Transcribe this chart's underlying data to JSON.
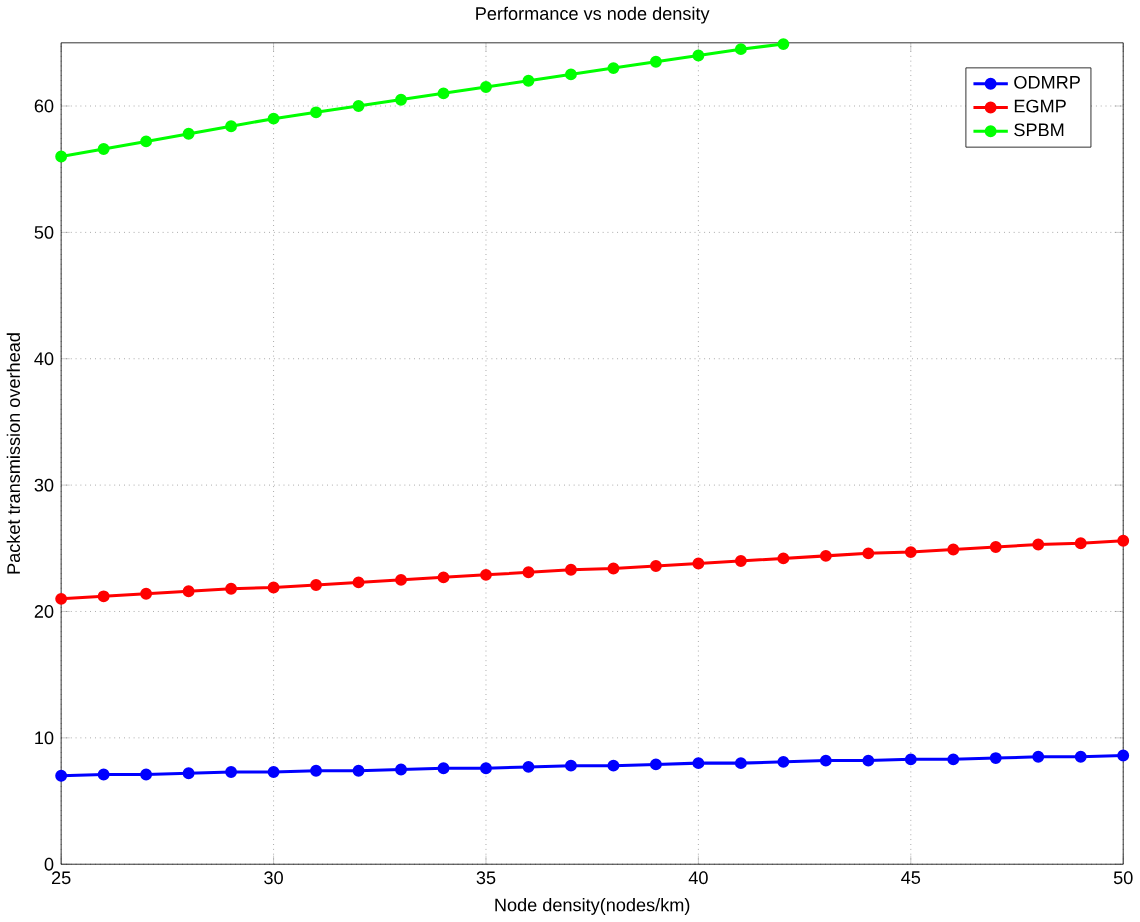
{
  "chart_data": {
    "type": "line",
    "title": "Performance vs node density",
    "xlabel": "Node density(nodes/km)",
    "ylabel": "Packet transmission overhead",
    "x": [
      25,
      26,
      27,
      28,
      29,
      30,
      31,
      32,
      33,
      34,
      35,
      36,
      37,
      38,
      39,
      40,
      41,
      42,
      43,
      44,
      45,
      46,
      47,
      48,
      49,
      50
    ],
    "series": [
      {
        "name": "ODMRP",
        "color": "#0000ff",
        "values": [
          7.0,
          7.1,
          7.1,
          7.2,
          7.3,
          7.3,
          7.4,
          7.4,
          7.5,
          7.6,
          7.6,
          7.7,
          7.8,
          7.8,
          7.9,
          8.0,
          8.0,
          8.1,
          8.2,
          8.2,
          8.3,
          8.3,
          8.4,
          8.5,
          8.5,
          8.6
        ]
      },
      {
        "name": "EGMP",
        "color": "#ff0000",
        "values": [
          21.0,
          21.2,
          21.4,
          21.6,
          21.8,
          21.9,
          22.1,
          22.3,
          22.5,
          22.7,
          22.9,
          23.1,
          23.3,
          23.4,
          23.6,
          23.8,
          24.0,
          24.2,
          24.4,
          24.6,
          24.7,
          24.9,
          25.1,
          25.3,
          25.4,
          25.6
        ]
      },
      {
        "name": "SPBM",
        "color": "#00ff00",
        "values": [
          56.0,
          56.6,
          57.2,
          57.8,
          58.4,
          59.0,
          59.5,
          60.0,
          60.5,
          61.0,
          61.5,
          62.0,
          62.5,
          63.0,
          63.5,
          64.0,
          64.5,
          64.9,
          null,
          null,
          null,
          null,
          null,
          null,
          null,
          null
        ]
      }
    ],
    "xlim": [
      25,
      50
    ],
    "xticks": [
      25,
      30,
      35,
      40,
      45,
      50
    ],
    "ylim": [
      0,
      65
    ],
    "yticks": [
      0,
      10,
      20,
      30,
      40,
      50,
      60
    ],
    "grid": true,
    "legend": "top right",
    "marker": "circle",
    "line_style": "solid"
  }
}
